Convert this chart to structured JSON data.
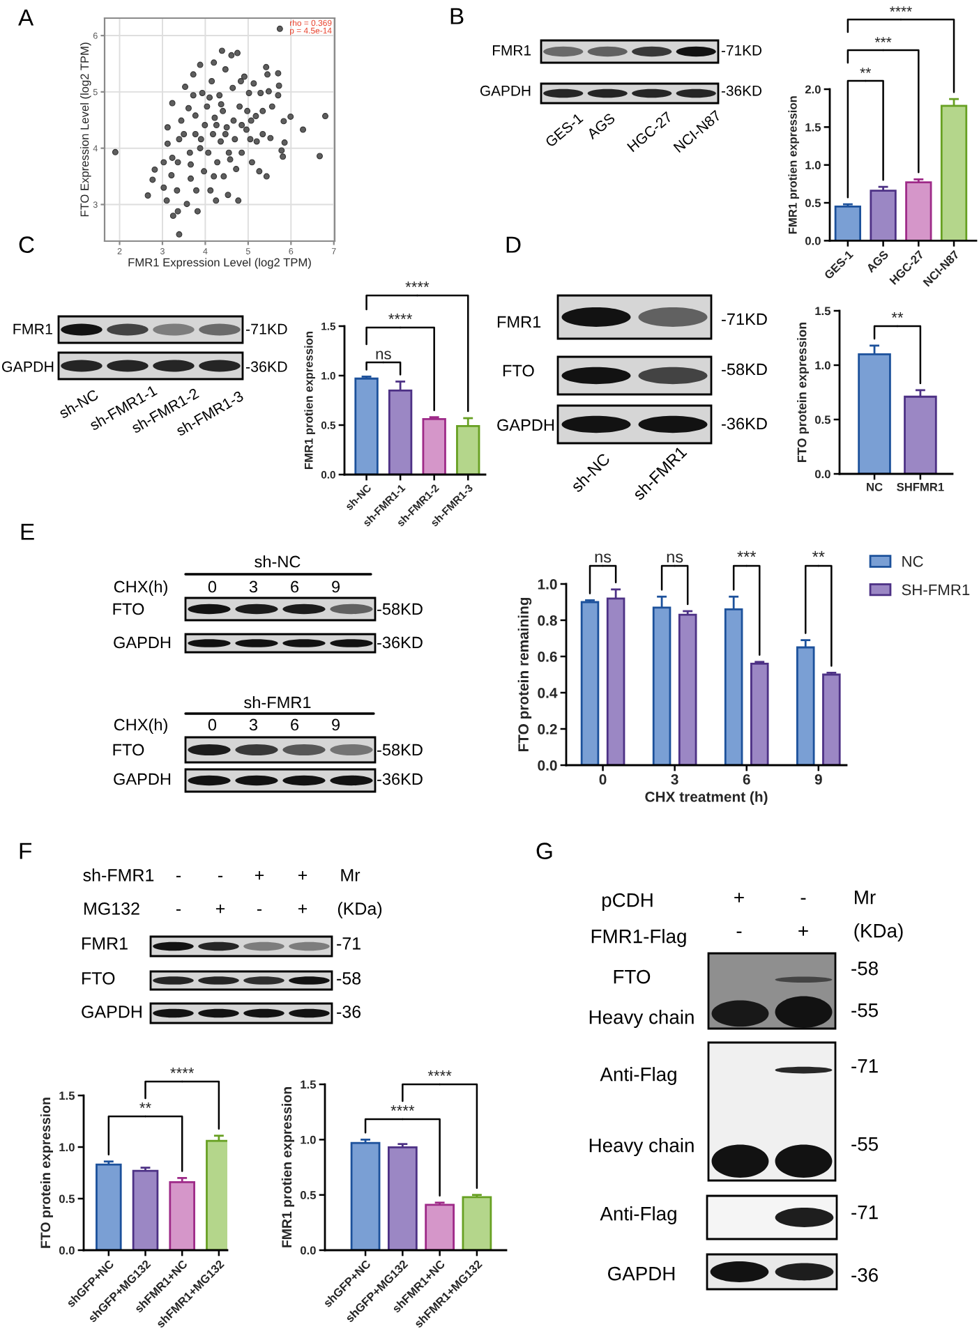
{
  "chart_data": [
    {
      "type": "scatter",
      "title": "A",
      "xlabel": "FMR1 Expression Level (log2 TPM)",
      "ylabel": "FTO Expression Level (log2 TPM)",
      "x": [
        1.9,
        2.66,
        2.77,
        2.82,
        3.03,
        3.03,
        3.1,
        3.12,
        3.12,
        3.21,
        3.23,
        3.25,
        3.34,
        3.36,
        3.39,
        3.36,
        3.39,
        3.44,
        3.53,
        3.57,
        3.61,
        3.64,
        3.66,
        3.72,
        3.77,
        3.79,
        3.82,
        3.88,
        3.9,
        3.93,
        3.97,
        3.99,
        4.04,
        4.07,
        4.12,
        4.15,
        4.18,
        4.2,
        4.22,
        4.25,
        4.28,
        4.33,
        4.36,
        4.39,
        4.41,
        4.43,
        4.47,
        4.5,
        4.53,
        4.55,
        4.61,
        4.64,
        4.66,
        4.69,
        4.72,
        4.75,
        4.77,
        4.8,
        4.83,
        4.85,
        4.91,
        4.96,
        4.98,
        5.02,
        5.05,
        5.09,
        5.13,
        5.18,
        5.2,
        5.26,
        5.29,
        5.34,
        5.42,
        5.43,
        5.45,
        5.48,
        5.52,
        5.56,
        5.7,
        5.72,
        5.74,
        5.78,
        5.81,
        5.83,
        5.85,
        5.99,
        6.28,
        6.67,
        6.8,
        5.7,
        3.77,
        3.88,
        4.26,
        4.37,
        4.1,
        4.58,
        3.5,
        3.23,
        3.66,
        4.47,
        4.85,
        4.2,
        3.72,
        5.07,
        5.34
      ],
      "values": [
        3.93,
        3.16,
        3.44,
        3.62,
        3.75,
        3.3,
        3.07,
        4.08,
        4.37,
        3.52,
        4.8,
        2.8,
        3.25,
        2.88,
        2.47,
        3.75,
        4.16,
        4.49,
        5.09,
        3.01,
        4.71,
        3.92,
        3.46,
        5.31,
        4.58,
        3.25,
        2.88,
        5.48,
        4.16,
        4.98,
        3.59,
        4.41,
        4.74,
        3.92,
        3.25,
        5.19,
        4.25,
        5.52,
        4.54,
        3.07,
        3.75,
        4.94,
        4.12,
        5.73,
        4.66,
        3.5,
        5.4,
        4.37,
        3.17,
        3.92,
        5.65,
        5.07,
        4.49,
        4.16,
        3.63,
        5.69,
        3.07,
        4.74,
        5.19,
        3.92,
        5.27,
        4.33,
        4.66,
        4.98,
        4.16,
        3.75,
        5.15,
        4.57,
        4.12,
        3.59,
        4.98,
        4.66,
        5.44,
        3.5,
        5.31,
        5.01,
        4.18,
        4.74,
        5.33,
        5.11,
        6.12,
        3.96,
        3.85,
        4.48,
        4.1,
        4.56,
        4.33,
        3.86,
        4.57,
        4.94,
        4.25,
        4.0,
        4.41,
        4.78,
        4.9,
        3.8,
        4.25,
        3.83,
        3.71,
        4.25,
        4.41,
        3.5,
        4.94,
        4.49,
        4.25
      ],
      "color": "#5e5e5e",
      "marker": "circle",
      "xlim": [
        1.65,
        7.02
      ],
      "ylim": [
        2.35,
        6.31
      ],
      "xticks": [
        2,
        3,
        4,
        5,
        6,
        7
      ],
      "yticks": [
        3,
        4,
        5,
        6
      ],
      "grid": true,
      "annotations": [
        "rho = 0.369",
        "p = 4.5e-14"
      ]
    },
    {
      "type": "other",
      "title": "B",
      "annotations": [
        "FMR1",
        "GAPDH",
        "-71KD",
        "-36KD",
        "GES-1",
        "AGS",
        "HGC-27",
        "NCI-N87"
      ]
    },
    {
      "type": "bar",
      "ylabel": "FMR1 protien expression",
      "categories": [
        "GES-1",
        "AGS",
        "HGC-27",
        "NCI-N87"
      ],
      "values": [
        0.45,
        0.66,
        0.77,
        1.78
      ],
      "errors": [
        0.03,
        0.05,
        0.04,
        0.09
      ],
      "colors": [
        "#7a9fd4",
        "#9b87c4",
        "#d596c9",
        "#b4d68b"
      ],
      "ylim": [
        0,
        2
      ],
      "yticks": [
        {
          "value": 0,
          "label": "0.0"
        },
        0.5,
        {
          "value": 1,
          "label": "1.0"
        },
        1.5,
        {
          "value": 2,
          "label": "2.0"
        }
      ],
      "annotations": [
        "**",
        "***",
        "****"
      ]
    },
    {
      "type": "other",
      "title": "C",
      "annotations": [
        "FMR1",
        "GAPDH",
        "-71KD",
        "-36KD",
        "sh-NC",
        "sh-FMR1-1",
        "sh-FMR1-2",
        "sh-FMR1-3"
      ]
    },
    {
      "type": "bar",
      "ylabel": "FMR1 protien expression",
      "categories": [
        "sh-NC",
        "sh-FMR1-1",
        "sh-FMR1-2",
        "sh-FMR1-3"
      ],
      "values": [
        0.97,
        0.85,
        0.56,
        0.49
      ],
      "errors": [
        0.02,
        0.09,
        0.02,
        0.08
      ],
      "colors": [
        "#7a9fd4",
        "#9b87c4",
        "#d596c9",
        "#b4d68b"
      ],
      "ylim": [
        0,
        1.5
      ],
      "yticks": [
        {
          "value": 0,
          "label": "0.0"
        },
        0.5,
        {
          "value": 1,
          "label": "1.0"
        },
        1.5
      ],
      "annotations": [
        "ns",
        "****",
        "****"
      ]
    },
    {
      "type": "other",
      "title": "D",
      "annotations": [
        "FMR1",
        "FTO",
        "GAPDH",
        "-71KD",
        "-58KD",
        "-36KD",
        "sh-NC",
        "sh-FMR1"
      ]
    },
    {
      "type": "bar",
      "ylabel": "FTO protein expression",
      "categories": [
        "NC",
        "SHFMR1"
      ],
      "values": [
        1.1,
        0.71
      ],
      "errors": [
        0.08,
        0.06
      ],
      "colors": [
        "#7a9fd4",
        "#9b87c4"
      ],
      "ylim": [
        0,
        1.5
      ],
      "yticks": [
        {
          "value": 0,
          "label": "0.0"
        },
        0.5,
        {
          "value": 1,
          "label": "1.0"
        },
        1.5
      ],
      "annotations": [
        "**"
      ]
    },
    {
      "type": "other",
      "title": "E",
      "annotations": [
        "sh-NC",
        "CHX(h)",
        "0       3       6       9",
        "FTO",
        "-58KD",
        "GAPDH",
        "-36KD",
        "sh-FMR1",
        "CHX(h)",
        "0       3       6       9",
        "FTO",
        "-58KD",
        "GAPDH",
        "-36KD"
      ]
    },
    {
      "type": "bar",
      "xlabel": "CHX treatment (h)",
      "ylabel": "FTO protein remaining",
      "categories": [
        "0",
        "3",
        "6",
        "9"
      ],
      "series": [
        {
          "name": "NC",
          "color": "#7a9fd4",
          "values": [
            0.9,
            0.87,
            0.86,
            0.65
          ],
          "errors": [
            0.01,
            0.06,
            0.07,
            0.04
          ]
        },
        {
          "name": "SH-FMR1",
          "color": "#9b87c4",
          "values": [
            0.92,
            0.83,
            0.56,
            0.5
          ],
          "errors": [
            0.05,
            0.02,
            0.01,
            0.01
          ]
        }
      ],
      "ylim": [
        0,
        1.0
      ],
      "yticks": [
        {
          "value": 0,
          "label": "0.0"
        },
        0.2,
        0.4,
        0.6,
        0.8,
        {
          "value": 1,
          "label": "1.0"
        }
      ],
      "legend": "right",
      "annotations": [
        "ns",
        "ns",
        "***",
        "**"
      ]
    },
    {
      "type": "other",
      "title": "F",
      "annotations": [
        "sh-FMR1",
        "-",
        "-",
        "+",
        "+",
        "Mr",
        "MG132",
        "-",
        "+",
        "-",
        "+",
        "(KDa)",
        "FMR1",
        "FTO",
        "GAPDH",
        "-71",
        "-58",
        "-36"
      ]
    },
    {
      "type": "bar",
      "ylabel": "FTO protein expression",
      "categories": [
        "shGFP+NC",
        "shGFP+MG132",
        "shFMR1+NC",
        "shFMR1+MG132"
      ],
      "values": [
        0.83,
        0.77,
        0.66,
        1.06
      ],
      "errors": [
        0.03,
        0.03,
        0.04,
        0.05
      ],
      "colors": [
        "#7a9fd4",
        "#9b87c4",
        "#d596c9",
        "#b4d68b"
      ],
      "ylim": [
        0,
        1.5
      ],
      "yticks": [
        {
          "value": 0,
          "label": "0.0"
        },
        0.5,
        {
          "value": 1,
          "label": "1.0"
        },
        1.5
      ],
      "annotations": [
        "**",
        "****"
      ]
    },
    {
      "type": "bar",
      "ylabel": "FMR1 protien expression",
      "categories": [
        "shGFP+NC",
        "shGFP+MG132",
        "shFMR1+NC",
        "shFMR1+MG132"
      ],
      "values": [
        0.97,
        0.93,
        0.41,
        0.48
      ],
      "errors": [
        0.03,
        0.03,
        0.02,
        0.02
      ],
      "colors": [
        "#7a9fd4",
        "#9b87c4",
        "#d596c9",
        "#b4d68b"
      ],
      "ylim": [
        0,
        1.5
      ],
      "yticks": [
        {
          "value": 0,
          "label": "0.0"
        },
        0.5,
        {
          "value": 1,
          "label": "1.0"
        },
        1.5
      ],
      "annotations": [
        "****",
        "****"
      ]
    },
    {
      "type": "other",
      "title": "G",
      "annotations": [
        "pCDH",
        "+",
        "-",
        "Mr",
        "FMR1-Flag",
        "-",
        "+",
        "(KDa)",
        "FTO",
        "Heavy chain",
        "-58",
        "-55",
        "Anti-Flag",
        "Heavy chain",
        "-71",
        "-55",
        "Anti-Flag",
        "-71",
        "GAPDH",
        "-36"
      ]
    }
  ]
}
